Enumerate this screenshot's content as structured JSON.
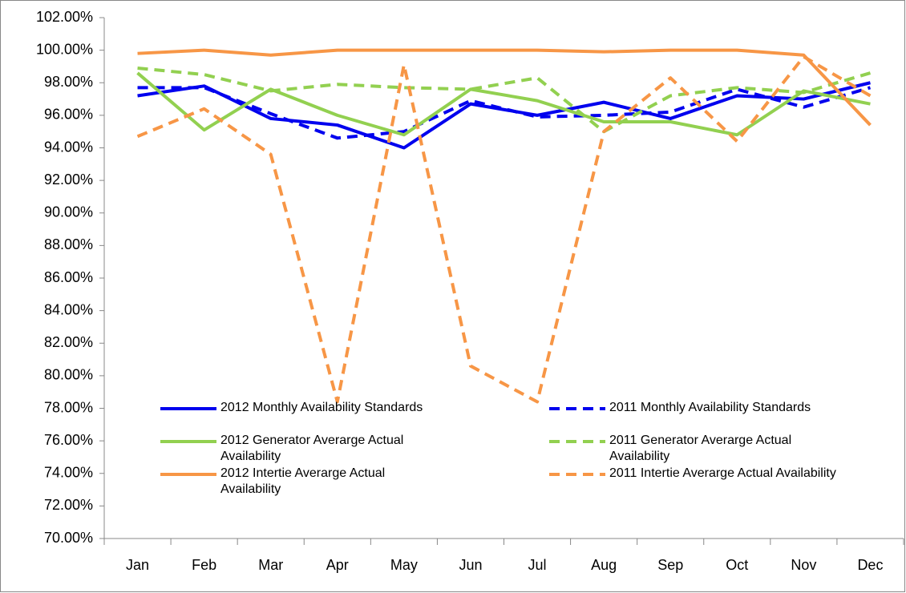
{
  "chart_data": {
    "type": "line",
    "categories": [
      "Jan",
      "Feb",
      "Mar",
      "Apr",
      "May",
      "Jun",
      "Jul",
      "Aug",
      "Sep",
      "Oct",
      "Nov",
      "Dec"
    ],
    "ylim": [
      70,
      102
    ],
    "yticks": [
      {
        "value": 70,
        "label": "70.00%"
      },
      {
        "value": 72,
        "label": "72.00%"
      },
      {
        "value": 74,
        "label": "74.00%"
      },
      {
        "value": 76,
        "label": "76.00%"
      },
      {
        "value": 78,
        "label": "78.00%"
      },
      {
        "value": 80,
        "label": "80.00%"
      },
      {
        "value": 82,
        "label": "82.00%"
      },
      {
        "value": 84,
        "label": "84.00%"
      },
      {
        "value": 86,
        "label": "86.00%"
      },
      {
        "value": 88,
        "label": "88.00%"
      },
      {
        "value": 90,
        "label": "90.00%"
      },
      {
        "value": 92,
        "label": "92.00%"
      },
      {
        "value": 94,
        "label": "94.00%"
      },
      {
        "value": 96,
        "label": "96.00%"
      },
      {
        "value": 98,
        "label": "98.00%"
      },
      {
        "value": 100,
        "label": "100.00%"
      },
      {
        "value": 102,
        "label": "102.00%"
      }
    ],
    "grid": false,
    "series": [
      {
        "name": "2012 Monthly Availability Standards",
        "color": "#0000ee",
        "dashed": false,
        "values": [
          97.2,
          97.8,
          95.8,
          95.4,
          94.0,
          96.7,
          96.0,
          96.8,
          95.8,
          97.2,
          97.0,
          98.0
        ]
      },
      {
        "name": "2011 Monthly Availability Standards",
        "color": "#0000ee",
        "dashed": true,
        "values": [
          97.7,
          97.7,
          96.1,
          94.6,
          95.0,
          96.9,
          95.9,
          96.0,
          96.2,
          97.6,
          96.5,
          97.7
        ]
      },
      {
        "name": "2012 Generator Averarge Actual Availability",
        "color": "#92d050",
        "dashed": false,
        "values": [
          98.6,
          95.1,
          97.6,
          96.0,
          94.8,
          97.6,
          96.9,
          95.6,
          95.6,
          94.8,
          97.5,
          96.7
        ]
      },
      {
        "name": "2011 Generator Averarge Actual Availability",
        "color": "#92d050",
        "dashed": true,
        "values": [
          98.9,
          98.5,
          97.5,
          97.9,
          97.7,
          97.6,
          98.3,
          95.0,
          97.2,
          97.7,
          97.4,
          98.6
        ]
      },
      {
        "name": "2012 Intertie Averarge Actual Availability",
        "color": "#f79646",
        "dashed": false,
        "values": [
          99.8,
          100.0,
          99.7,
          100.0,
          100.0,
          100.0,
          100.0,
          99.9,
          100.0,
          100.0,
          99.7,
          95.4
        ]
      },
      {
        "name": "2011 Intertie Averarge Actual Availability",
        "color": "#f79646",
        "dashed": true,
        "values": [
          94.7,
          96.4,
          93.6,
          78.4,
          99.1,
          80.6,
          78.4,
          95.0,
          98.3,
          94.4,
          99.6,
          97.2
        ]
      }
    ]
  }
}
